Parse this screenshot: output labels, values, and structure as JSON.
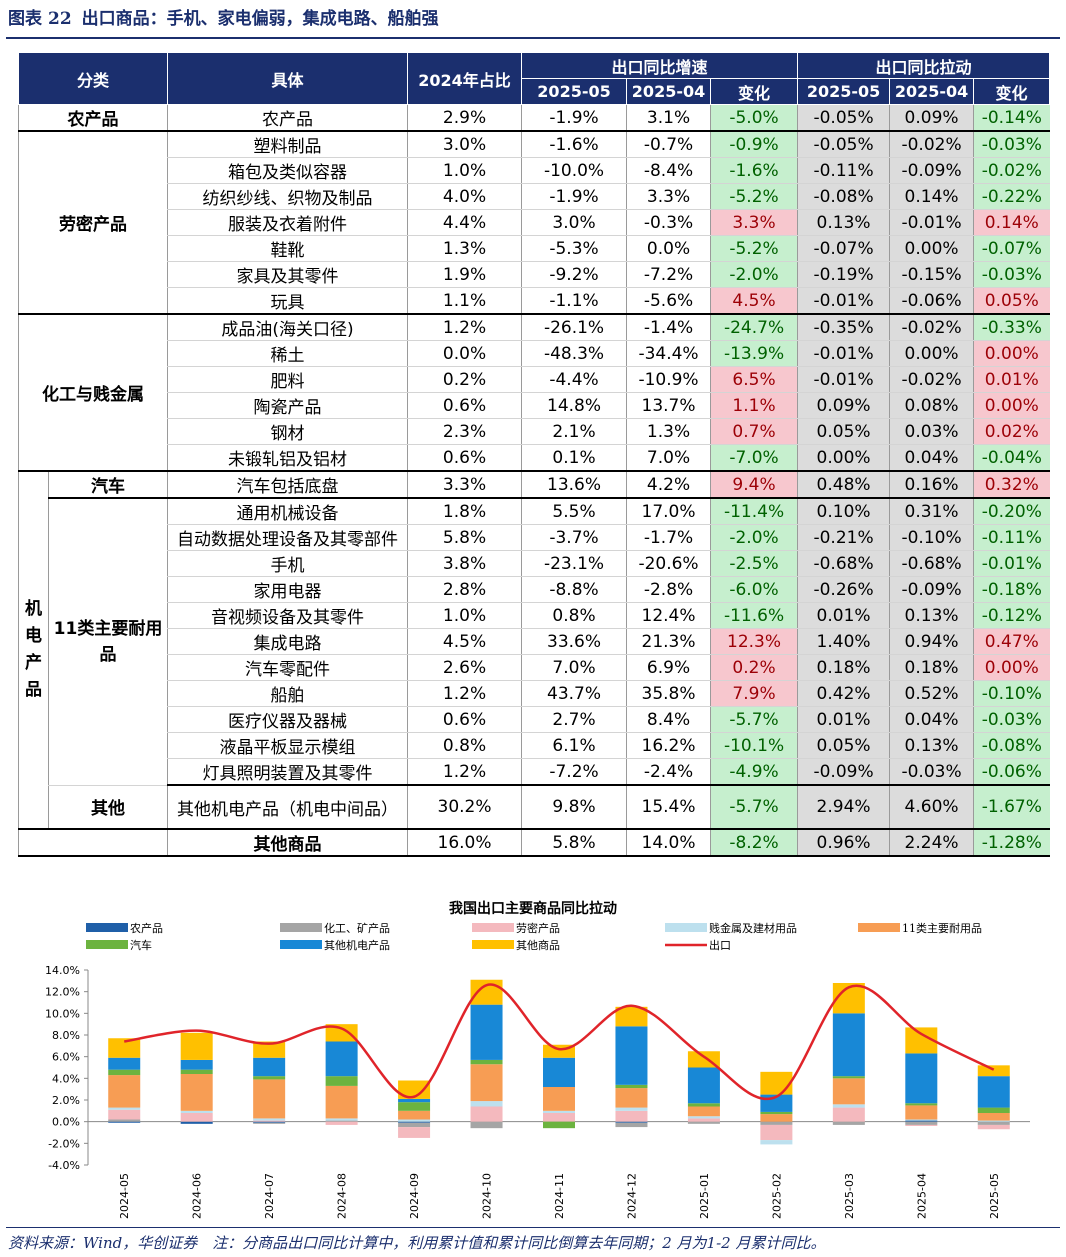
{
  "figure": {
    "label": "图表",
    "number": "22",
    "title": "出口商品：手机、家电偏弱，集成电路、船舶强"
  },
  "table": {
    "headers": {
      "category": "分类",
      "item": "具体",
      "share": "2024年占比",
      "growth_group": "出口同比增速",
      "pull_group": "出口同比拉动",
      "m1": "2025-05",
      "m2": "2025-04",
      "change": "变化"
    },
    "rows": [
      {
        "item": "农产品",
        "share": "2.9%",
        "g1": "-1.9%",
        "g2": "3.1%",
        "gc": "-5.0%",
        "p1": "-0.05%",
        "p2": "0.09%",
        "pc": "-0.14%"
      },
      {
        "item": "塑料制品",
        "share": "3.0%",
        "g1": "-1.6%",
        "g2": "-0.7%",
        "gc": "-0.9%",
        "p1": "-0.05%",
        "p2": "-0.02%",
        "pc": "-0.03%"
      },
      {
        "item": "箱包及类似容器",
        "share": "1.0%",
        "g1": "-10.0%",
        "g2": "-8.4%",
        "gc": "-1.6%",
        "p1": "-0.11%",
        "p2": "-0.09%",
        "pc": "-0.02%"
      },
      {
        "item": "纺织纱线、织物及制品",
        "share": "4.0%",
        "g1": "-1.9%",
        "g2": "3.3%",
        "gc": "-5.2%",
        "p1": "-0.08%",
        "p2": "0.14%",
        "pc": "-0.22%"
      },
      {
        "item": "服装及衣着附件",
        "share": "4.4%",
        "g1": "3.0%",
        "g2": "-0.3%",
        "gc": "3.3%",
        "p1": "0.13%",
        "p2": "-0.01%",
        "pc": "0.14%"
      },
      {
        "item": "鞋靴",
        "share": "1.3%",
        "g1": "-5.3%",
        "g2": "0.0%",
        "gc": "-5.2%",
        "p1": "-0.07%",
        "p2": "0.00%",
        "pc": "-0.07%"
      },
      {
        "item": "家具及其零件",
        "share": "1.9%",
        "g1": "-9.2%",
        "g2": "-7.2%",
        "gc": "-2.0%",
        "p1": "-0.19%",
        "p2": "-0.15%",
        "pc": "-0.03%"
      },
      {
        "item": "玩具",
        "share": "1.1%",
        "g1": "-1.1%",
        "g2": "-5.6%",
        "gc": "4.5%",
        "p1": "-0.01%",
        "p2": "-0.06%",
        "pc": "0.05%"
      },
      {
        "item": "成品油(海关口径)",
        "share": "1.2%",
        "g1": "-26.1%",
        "g2": "-1.4%",
        "gc": "-24.7%",
        "p1": "-0.35%",
        "p2": "-0.02%",
        "pc": "-0.33%"
      },
      {
        "item": "稀土",
        "share": "0.0%",
        "g1": "-48.3%",
        "g2": "-34.4%",
        "gc": "-13.9%",
        "p1": "-0.01%",
        "p2": "0.00%",
        "pc": "0.00%"
      },
      {
        "item": "肥料",
        "share": "0.2%",
        "g1": "-4.4%",
        "g2": "-10.9%",
        "gc": "6.5%",
        "p1": "-0.01%",
        "p2": "-0.02%",
        "pc": "0.01%"
      },
      {
        "item": "陶瓷产品",
        "share": "0.6%",
        "g1": "14.8%",
        "g2": "13.7%",
        "gc": "1.1%",
        "p1": "0.09%",
        "p2": "0.08%",
        "pc": "0.00%"
      },
      {
        "item": "钢材",
        "share": "2.3%",
        "g1": "2.1%",
        "g2": "1.3%",
        "gc": "0.7%",
        "p1": "0.05%",
        "p2": "0.03%",
        "pc": "0.02%"
      },
      {
        "item": "未锻轧铝及铝材",
        "share": "0.6%",
        "g1": "0.1%",
        "g2": "7.0%",
        "gc": "-7.0%",
        "p1": "0.00%",
        "p2": "0.04%",
        "pc": "-0.04%"
      },
      {
        "item": "汽车包括底盘",
        "share": "3.3%",
        "g1": "13.6%",
        "g2": "4.2%",
        "gc": "9.4%",
        "p1": "0.48%",
        "p2": "0.16%",
        "pc": "0.32%"
      },
      {
        "item": "通用机械设备",
        "share": "1.8%",
        "g1": "5.5%",
        "g2": "17.0%",
        "gc": "-11.4%",
        "p1": "0.10%",
        "p2": "0.31%",
        "pc": "-0.20%"
      },
      {
        "item": "自动数据处理设备及其零部件",
        "share": "5.8%",
        "g1": "-3.7%",
        "g2": "-1.7%",
        "gc": "-2.0%",
        "p1": "-0.21%",
        "p2": "-0.10%",
        "pc": "-0.11%"
      },
      {
        "item": "手机",
        "share": "3.8%",
        "g1": "-23.1%",
        "g2": "-20.6%",
        "gc": "-2.5%",
        "p1": "-0.68%",
        "p2": "-0.68%",
        "pc": "-0.01%"
      },
      {
        "item": "家用电器",
        "share": "2.8%",
        "g1": "-8.8%",
        "g2": "-2.8%",
        "gc": "-6.0%",
        "p1": "-0.26%",
        "p2": "-0.09%",
        "pc": "-0.18%"
      },
      {
        "item": "音视频设备及其零件",
        "share": "1.0%",
        "g1": "0.8%",
        "g2": "12.4%",
        "gc": "-11.6%",
        "p1": "0.01%",
        "p2": "0.13%",
        "pc": "-0.12%"
      },
      {
        "item": "集成电路",
        "share": "4.5%",
        "g1": "33.6%",
        "g2": "21.3%",
        "gc": "12.3%",
        "p1": "1.40%",
        "p2": "0.94%",
        "pc": "0.47%"
      },
      {
        "item": "汽车零配件",
        "share": "2.6%",
        "g1": "7.0%",
        "g2": "6.9%",
        "gc": "0.2%",
        "p1": "0.18%",
        "p2": "0.18%",
        "pc": "0.00%"
      },
      {
        "item": "船舶",
        "share": "1.2%",
        "g1": "43.7%",
        "g2": "35.8%",
        "gc": "7.9%",
        "p1": "0.42%",
        "p2": "0.52%",
        "pc": "-0.10%"
      },
      {
        "item": "医疗仪器及器械",
        "share": "0.6%",
        "g1": "2.7%",
        "g2": "8.4%",
        "gc": "-5.7%",
        "p1": "0.01%",
        "p2": "0.04%",
        "pc": "-0.03%"
      },
      {
        "item": "液晶平板显示模组",
        "share": "0.8%",
        "g1": "6.1%",
        "g2": "16.2%",
        "gc": "-10.1%",
        "p1": "0.05%",
        "p2": "0.13%",
        "pc": "-0.08%"
      },
      {
        "item": "灯具照明装置及其零件",
        "share": "1.2%",
        "g1": "-7.2%",
        "g2": "-2.4%",
        "gc": "-4.9%",
        "p1": "-0.09%",
        "p2": "-0.03%",
        "pc": "-0.06%"
      },
      {
        "item": "其他机电产品（机电中间品）",
        "share": "30.2%",
        "g1": "9.8%",
        "g2": "15.4%",
        "gc": "-5.7%",
        "p1": "2.94%",
        "p2": "4.60%",
        "pc": "-1.67%"
      },
      {
        "item": "",
        "share": "16.0%",
        "g1": "5.8%",
        "g2": "14.0%",
        "gc": "-8.2%",
        "p1": "0.96%",
        "p2": "2.24%",
        "pc": "-1.28%"
      }
    ],
    "groups": {
      "agri": "农产品",
      "labor": "劳密产品",
      "chem": "化工与贱金属",
      "mech": "机电产品",
      "auto": "汽车",
      "durable": "11类主要耐用品",
      "other_mech": "其他",
      "other_goods": "其他商品"
    }
  },
  "chart_data": {
    "type": "bar",
    "title": "我国出口主要商品同比拉动",
    "categories": [
      "2024-05",
      "2024-06",
      "2024-07",
      "2024-08",
      "2024-09",
      "2024-10",
      "2024-11",
      "2024-12",
      "2025-01",
      "2025-02",
      "2025-03",
      "2025-04",
      "2025-05"
    ],
    "ylim": [
      -4.0,
      14.0
    ],
    "yticks": [
      "14.0%",
      "12.0%",
      "10.0%",
      "8.0%",
      "6.0%",
      "4.0%",
      "2.0%",
      "0.0%",
      "-2.0%",
      "-4.0%"
    ],
    "legend_position": "top",
    "series": [
      {
        "name": "农产品",
        "color": "#1f5fa8",
        "values": [
          -0.1,
          -0.2,
          -0.1,
          0.0,
          -0.1,
          0.0,
          0.0,
          -0.1,
          0.0,
          0.0,
          0.0,
          0.1,
          0.0
        ]
      },
      {
        "name": "化工、矿产品",
        "color": "#a5a5a5",
        "values": [
          0.2,
          0.0,
          -0.1,
          0.1,
          -0.4,
          -0.6,
          0.0,
          -0.4,
          -0.2,
          -0.3,
          -0.3,
          -0.3,
          -0.3
        ]
      },
      {
        "name": "劳密产品",
        "color": "#f4b9be",
        "values": [
          0.9,
          0.8,
          0.1,
          -0.3,
          -1.0,
          1.4,
          0.8,
          1.0,
          0.3,
          -1.4,
          1.3,
          -0.1,
          -0.4
        ]
      },
      {
        "name": "贱金属及建材用品",
        "color": "#bde0ee",
        "values": [
          0.2,
          0.2,
          0.2,
          0.2,
          0.2,
          0.5,
          0.2,
          0.3,
          0.2,
          -0.4,
          0.3,
          0.1,
          0.1
        ]
      },
      {
        "name": "11类主要耐用品",
        "color": "#f79d54",
        "values": [
          3.0,
          3.4,
          3.6,
          3.0,
          0.8,
          3.4,
          2.2,
          1.8,
          0.9,
          0.7,
          2.4,
          1.3,
          0.7
        ]
      },
      {
        "name": "汽车",
        "color": "#6cb33f",
        "values": [
          0.5,
          0.4,
          0.3,
          0.9,
          0.8,
          0.4,
          -0.6,
          0.3,
          0.3,
          0.2,
          0.2,
          0.2,
          0.5
        ]
      },
      {
        "name": "其他机电产品",
        "color": "#1888d6",
        "values": [
          1.1,
          0.9,
          1.7,
          3.2,
          0.3,
          5.1,
          2.7,
          5.4,
          3.3,
          1.6,
          5.8,
          4.6,
          2.9
        ]
      },
      {
        "name": "其他商品",
        "color": "#ffc000",
        "values": [
          1.8,
          2.5,
          1.5,
          1.6,
          1.7,
          2.3,
          1.2,
          1.8,
          1.5,
          2.1,
          2.8,
          2.4,
          1.0
        ]
      }
    ],
    "line": {
      "name": "出口",
      "color": "#e0242a",
      "values": [
        7.4,
        8.4,
        7.2,
        8.6,
        2.3,
        12.6,
        6.7,
        10.7,
        6.0,
        2.3,
        12.4,
        8.1,
        4.8
      ]
    }
  },
  "footer": "资料来源：Wind，华创证券　注：分商品出口同比计算中，利用累计值和累计同比倒算去年同期；2 月为1-2 月累计同比。"
}
